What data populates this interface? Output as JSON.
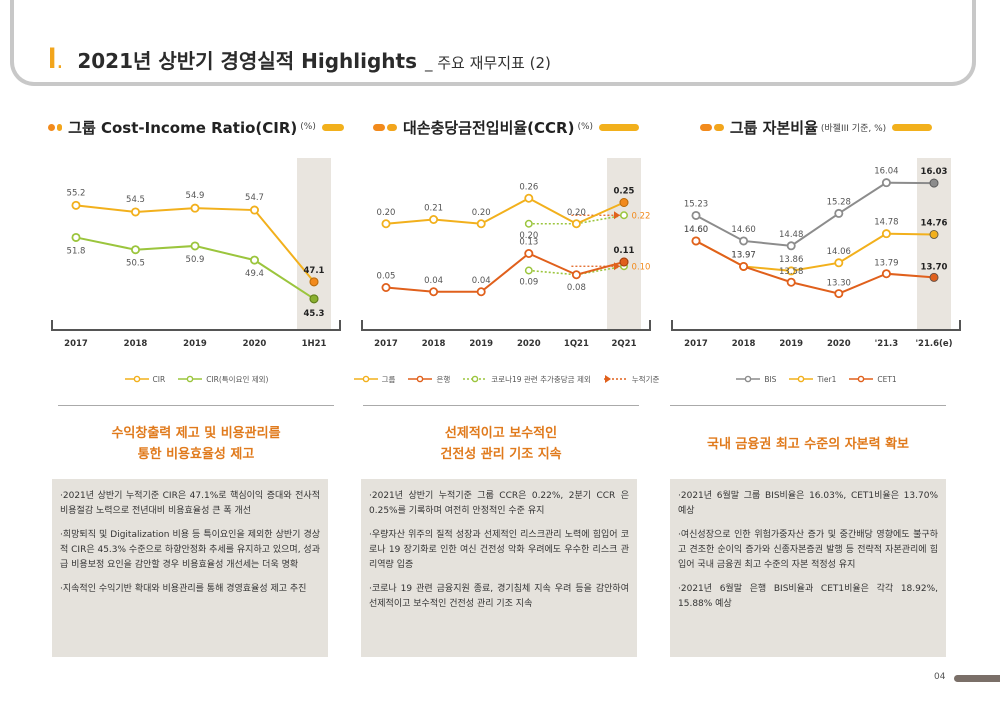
{
  "header": {
    "number": "I",
    "dot": ".",
    "title": "2021년 상반기 경영실적 Highlights",
    "subtitle": "_ 주요 재무지표 (2)"
  },
  "colors": {
    "accent": "#f2a51c",
    "orange": "#f28a1c",
    "green": "#9bc53d",
    "grey": "#8c8c8c",
    "red_orange": "#e0601c",
    "highlight": "#e9e5df"
  },
  "chart_data": [
    {
      "type": "line",
      "title": "그룹 Cost-Income Ratio(CIR)",
      "unit": "(%)",
      "categories": [
        "2017",
        "2018",
        "2019",
        "2020",
        "1H21"
      ],
      "highlight_category": "1H21",
      "series": [
        {
          "name": "CIR",
          "values": [
            55.2,
            54.5,
            54.9,
            54.7,
            47.1
          ],
          "labels": [
            "55.2",
            "54.5",
            "54.9",
            "54.7",
            "47.1"
          ]
        },
        {
          "name": "CIR(특이요인 제외)",
          "values": [
            51.8,
            50.5,
            50.9,
            49.4,
            45.3
          ],
          "labels": [
            "51.8",
            "50.5",
            "50.9",
            "49.4",
            "45.3"
          ]
        }
      ],
      "ylim": [
        42,
        60
      ]
    },
    {
      "type": "line",
      "title": "대손충당금전입비율(CCR)",
      "unit": "(%)",
      "categories": [
        "2017",
        "2018",
        "2019",
        "2020",
        "1Q21",
        "2Q21"
      ],
      "highlight_category": "2Q21",
      "series": [
        {
          "name": "그룹",
          "values": [
            0.2,
            0.21,
            0.2,
            0.26,
            0.2,
            0.25
          ],
          "labels": [
            "0.20",
            "0.21",
            "0.20",
            "0.26",
            "0.20",
            "0.25"
          ]
        },
        {
          "name": "은행",
          "values": [
            0.05,
            0.04,
            0.04,
            0.13,
            0.08,
            0.11
          ],
          "labels": [
            "0.05",
            "0.04",
            "0.04",
            "0.13",
            "0.08",
            "0.11"
          ]
        },
        {
          "name": "코로나19 관련 추가충당금 제외",
          "x": [
            "2020",
            "1Q21",
            "2Q21"
          ],
          "values": [
            0.2,
            0.2,
            0.22
          ],
          "labels": [
            "0.20",
            "",
            "0.22"
          ]
        },
        {
          "name": "코로나19 관련 추가충당금 제외 (은행)",
          "x": [
            "2020",
            "1Q21",
            "2Q21"
          ],
          "values": [
            0.09,
            0.08,
            0.1
          ],
          "labels": [
            "0.09",
            "",
            "0.10"
          ]
        }
      ],
      "cumulative": {
        "name": "누적기준",
        "series": [
          {
            "from": "1Q21",
            "to": "2Q21",
            "value": 0.22
          },
          {
            "from": "1Q21",
            "to": "2Q21",
            "value": 0.1
          }
        ]
      },
      "ylim": [
        -0.05,
        0.35
      ]
    },
    {
      "type": "line",
      "title": "그룹 자본비율",
      "unit": "(바젤III 기준, %)",
      "categories": [
        "2017",
        "2018",
        "2019",
        "2020",
        "'21.3",
        "'21.6(e)"
      ],
      "highlight_category": "'21.6(e)",
      "series": [
        {
          "name": "BIS",
          "values": [
            15.23,
            14.6,
            14.48,
            15.28,
            16.04,
            16.03
          ],
          "labels": [
            "15.23",
            "14.60",
            "14.48",
            "15.28",
            "16.04",
            "16.03"
          ]
        },
        {
          "name": "Tier1",
          "values": [
            14.6,
            13.97,
            13.86,
            14.06,
            14.78,
            14.76
          ],
          "labels": [
            "14.60",
            "13.97",
            "13.86",
            "14.06",
            "14.78",
            "14.76"
          ]
        },
        {
          "name": "CET1",
          "values": [
            14.6,
            13.97,
            13.58,
            13.3,
            13.79,
            13.7
          ],
          "labels": [
            "14.60",
            "13.97",
            "13.58",
            "13.30",
            "13.79",
            "13.70"
          ]
        }
      ]
    }
  ],
  "legends": [
    [
      {
        "name": "CIR",
        "style": "line-orange"
      },
      {
        "name": "CIR(특이요인 제외)",
        "style": "line-green"
      }
    ],
    [
      {
        "name": "그룹",
        "style": "line-yellow"
      },
      {
        "name": "은행",
        "style": "line-red"
      },
      {
        "name": "코로나19 관련 추가충당금 제외",
        "style": "dotted-green"
      },
      {
        "name": "누적기준",
        "style": "dotted-arrow"
      }
    ],
    [
      {
        "name": "BIS",
        "style": "line-grey"
      },
      {
        "name": "Tier1",
        "style": "line-yellow"
      },
      {
        "name": "CET1",
        "style": "line-red"
      }
    ]
  ],
  "sections": [
    {
      "headline": "수익창출력 제고 및 비용관리를\n통한 비용효율성 제고",
      "bullets": [
        "·2021년 상반기 누적기준 CIR은 47.1%로 핵심이익 증대와 전사적 비용절감 노력으로 전년대비 비용효율성 큰 폭 개선",
        "·희망퇴직 및 Digitalization 비용 등 특이요인을 제외한 상반기 경상적 CIR은 45.3% 수준으로 하향안정화 추세를 유지하고 있으며, 성과급 비용보정 요인을 감안할 경우 비용효율성 개선세는 더욱 명확",
        "·지속적인 수익기반 확대와 비용관리를 통해 경영효율성 제고 추진"
      ]
    },
    {
      "headline": "선제적이고 보수적인\n건전성 관리 기조 지속",
      "bullets": [
        "·2021년 상반기 누적기준 그룹 CCR은 0.22%, 2분기 CCR 은 0.25%를 기록하며 여전히 안정적인 수준 유지",
        "·우량자산 위주의 질적 성장과 선제적인 리스크관리 노력에 힘입어 코로나 19 장기화로 인한 여신 건전성 악화 우려에도 우수한 리스크 관리역량 입증",
        "·코로나 19 관련 금융지원 종료, 경기침체 지속 우려 등을 감안하여 선제적이고 보수적인 건전성 관리 기조 지속"
      ]
    },
    {
      "headline": "국내 금융권 최고 수준의 자본력 확보",
      "bullets": [
        "·2021년 6월말 그룹 BIS비율은 16.03%, CET1비율은 13.70% 예상",
        "·여신성장으로 인한 위험가중자산 증가 및 중간배당 영향에도 불구하고 견조한 순이익 증가와 신종자본증권 발행 등 전략적 자본관리에 힘입어 국내 금융권 최고 수준의 자본 적정성 유지",
        "·2021년 6월말 은행 BIS비율과 CET1비율은 각각 18.92%, 15.88% 예상"
      ]
    }
  ],
  "page_number": "04"
}
